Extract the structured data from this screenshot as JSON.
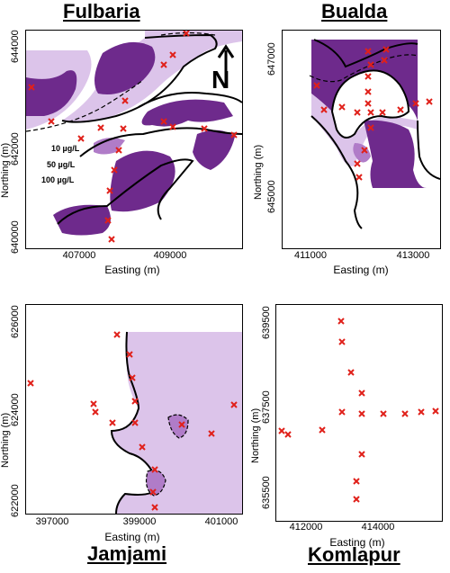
{
  "panels": {
    "fulbaria": {
      "title": "Fulbaria",
      "xlabel": "Easting (m)",
      "ylabel": "Northing (m)",
      "xticks": [
        "407000",
        "409000"
      ],
      "yticks": [
        "644000",
        "642000",
        "640000"
      ],
      "legend": [
        "10 µg/L",
        "50 µg/L",
        "100 µg/L"
      ],
      "north_label": "N"
    },
    "bualda": {
      "title": "Bualda",
      "xlabel": "Easting (m)",
      "ylabel": "Northing (m)",
      "xticks": [
        "411000",
        "413000"
      ],
      "yticks": [
        "647000",
        "645000"
      ]
    },
    "jamjami": {
      "title": "Jamjami",
      "xlabel": "Easting (m)",
      "ylabel": "Northing (m)",
      "xticks": [
        "397000",
        "399000",
        "401000"
      ],
      "yticks": [
        "626000",
        "624000",
        "622000"
      ]
    },
    "komlapur": {
      "title": "Komlapur",
      "xlabel": "Easting (m)",
      "ylabel": "Northing (m)",
      "xticks": [
        "412000",
        "414000"
      ],
      "yticks": [
        "639500",
        "637500",
        "635500"
      ]
    }
  },
  "colors": {
    "light_zone": "#dcc4ea",
    "mid_zone": "#b07cc8",
    "dark_zone": "#6e2a8c",
    "marker": "#e0201a"
  }
}
